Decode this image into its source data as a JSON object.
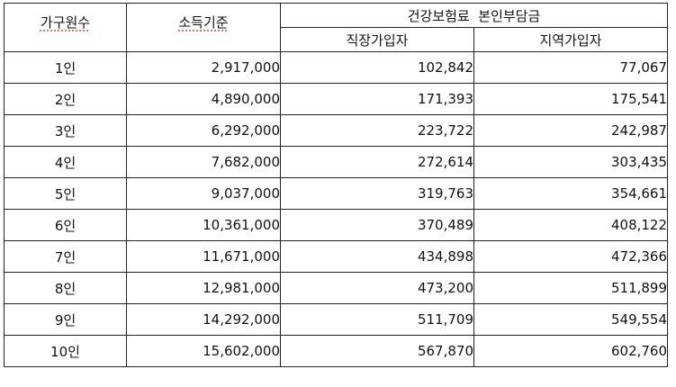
{
  "table": {
    "headers": {
      "household_size": "가구원수",
      "income_standard": "소득기준",
      "premium_group": "건강보험료  본인부담금",
      "employee": "직장가입자",
      "regional": "지역가입자"
    },
    "rows": [
      {
        "household": "1인",
        "income": "2,917,000",
        "employee": "102,842",
        "regional": "77,067"
      },
      {
        "household": "2인",
        "income": "4,890,000",
        "employee": "171,393",
        "regional": "175,541"
      },
      {
        "household": "3인",
        "income": "6,292,000",
        "employee": "223,722",
        "regional": "242,987"
      },
      {
        "household": "4인",
        "income": "7,682,000",
        "employee": "272,614",
        "regional": "303,435"
      },
      {
        "household": "5인",
        "income": "9,037,000",
        "employee": "319,763",
        "regional": "354,661"
      },
      {
        "household": "6인",
        "income": "10,361,000",
        "employee": "370,489",
        "regional": "408,122"
      },
      {
        "household": "7인",
        "income": "11,671,000",
        "employee": "434,898",
        "regional": "472,366"
      },
      {
        "household": "8인",
        "income": "12,981,000",
        "employee": "473,200",
        "regional": "511,899"
      },
      {
        "household": "9인",
        "income": "14,292,000",
        "employee": "511,709",
        "regional": "549,554"
      },
      {
        "household": "10인",
        "income": "15,602,000",
        "employee": "567,870",
        "regional": "602,760"
      }
    ]
  }
}
